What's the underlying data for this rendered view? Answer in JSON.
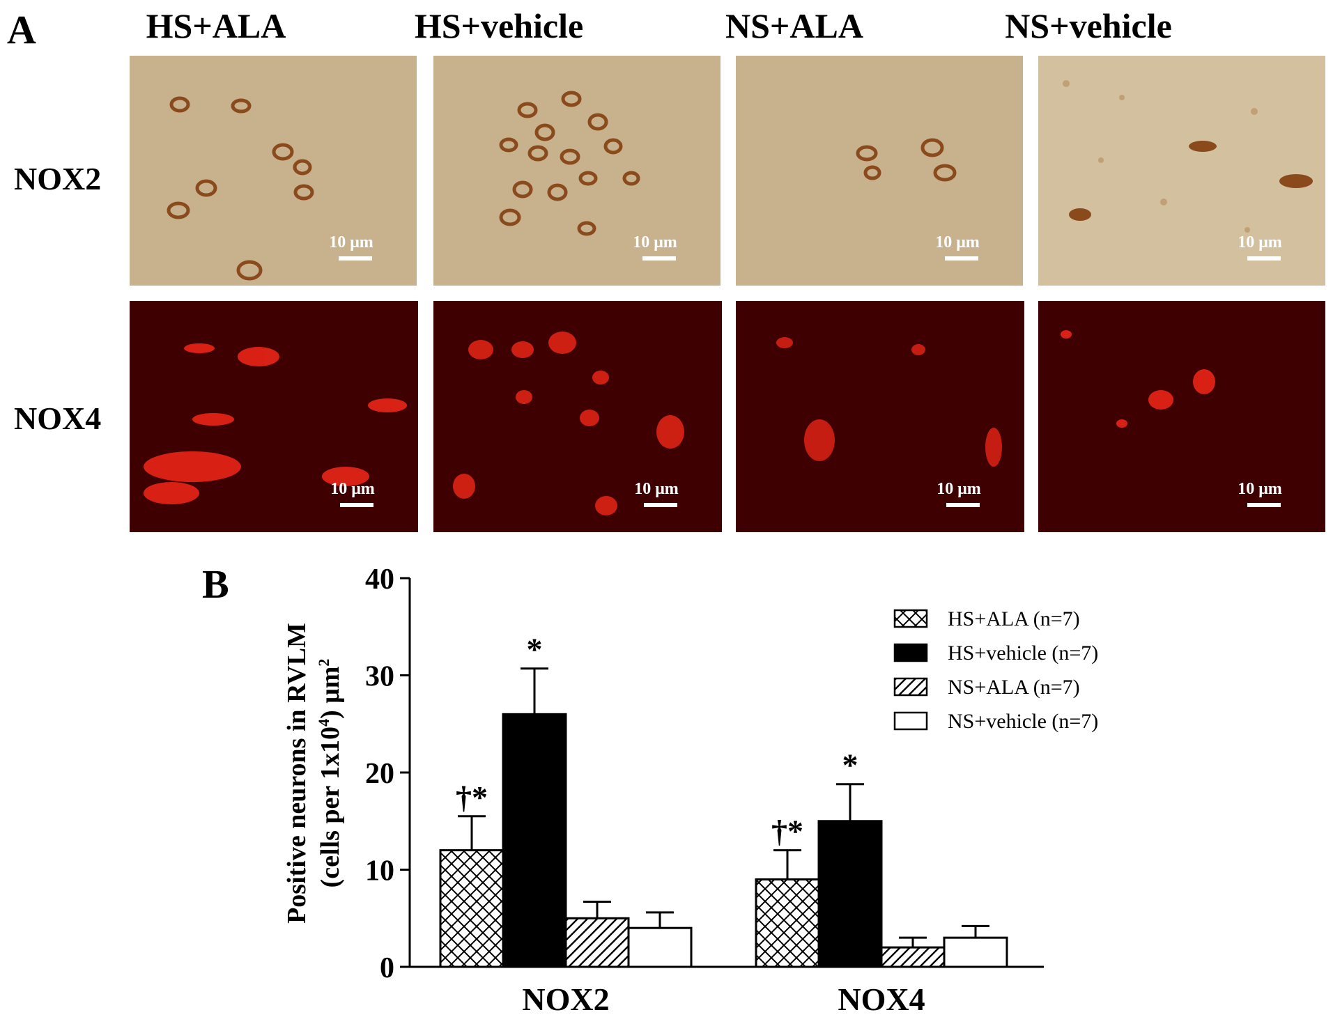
{
  "figure": {
    "panel_a_letter": "A",
    "panel_b_letter": "B",
    "column_headers": [
      "HS+ALA",
      "HS+vehicle",
      "NS+ALA",
      "NS+vehicle"
    ],
    "row_headers": [
      "NOX2",
      "NOX4"
    ],
    "scale_bar_label": "10 μm",
    "colors": {
      "nox2_stain_background": "#c8b28e",
      "nox2_cell_stain": "#8a4a1c",
      "nox4_fluorescence_background": "#3e0000",
      "nox4_cell_signal": "#ff2a1a"
    }
  },
  "chart_data": {
    "type": "bar",
    "categories": [
      "NOX2",
      "NOX4"
    ],
    "ylabel_line1": "Positive neurons in RVLM",
    "ylabel_line2_prefix": "(cells per 1x10",
    "ylabel_line2_sup": "4",
    "ylabel_line2_suffix": ") μm",
    "ylabel_line2_sup2": "2",
    "ylim": [
      0,
      40
    ],
    "yticks": [
      0,
      10,
      20,
      30,
      40
    ],
    "legend_position": "top-right",
    "series": [
      {
        "name": "HS+ALA (n=7)",
        "pattern": "crosshatch",
        "values": [
          12,
          9
        ],
        "errors": [
          3.5,
          3
        ],
        "annotations": [
          "†*",
          "†*"
        ]
      },
      {
        "name": "HS+vehicle (n=7)",
        "pattern": "solid-black",
        "values": [
          26,
          15
        ],
        "errors": [
          4.7,
          3.8
        ],
        "annotations": [
          "*",
          "*"
        ]
      },
      {
        "name": "NS+ALA (n=7)",
        "pattern": "diagonal-hatch",
        "values": [
          5,
          2
        ],
        "errors": [
          1.7,
          1
        ],
        "annotations": [
          "",
          ""
        ]
      },
      {
        "name": "NS+vehicle (n=7)",
        "pattern": "white",
        "values": [
          4,
          3
        ],
        "errors": [
          1.6,
          1.2
        ],
        "annotations": [
          "",
          ""
        ]
      }
    ]
  }
}
